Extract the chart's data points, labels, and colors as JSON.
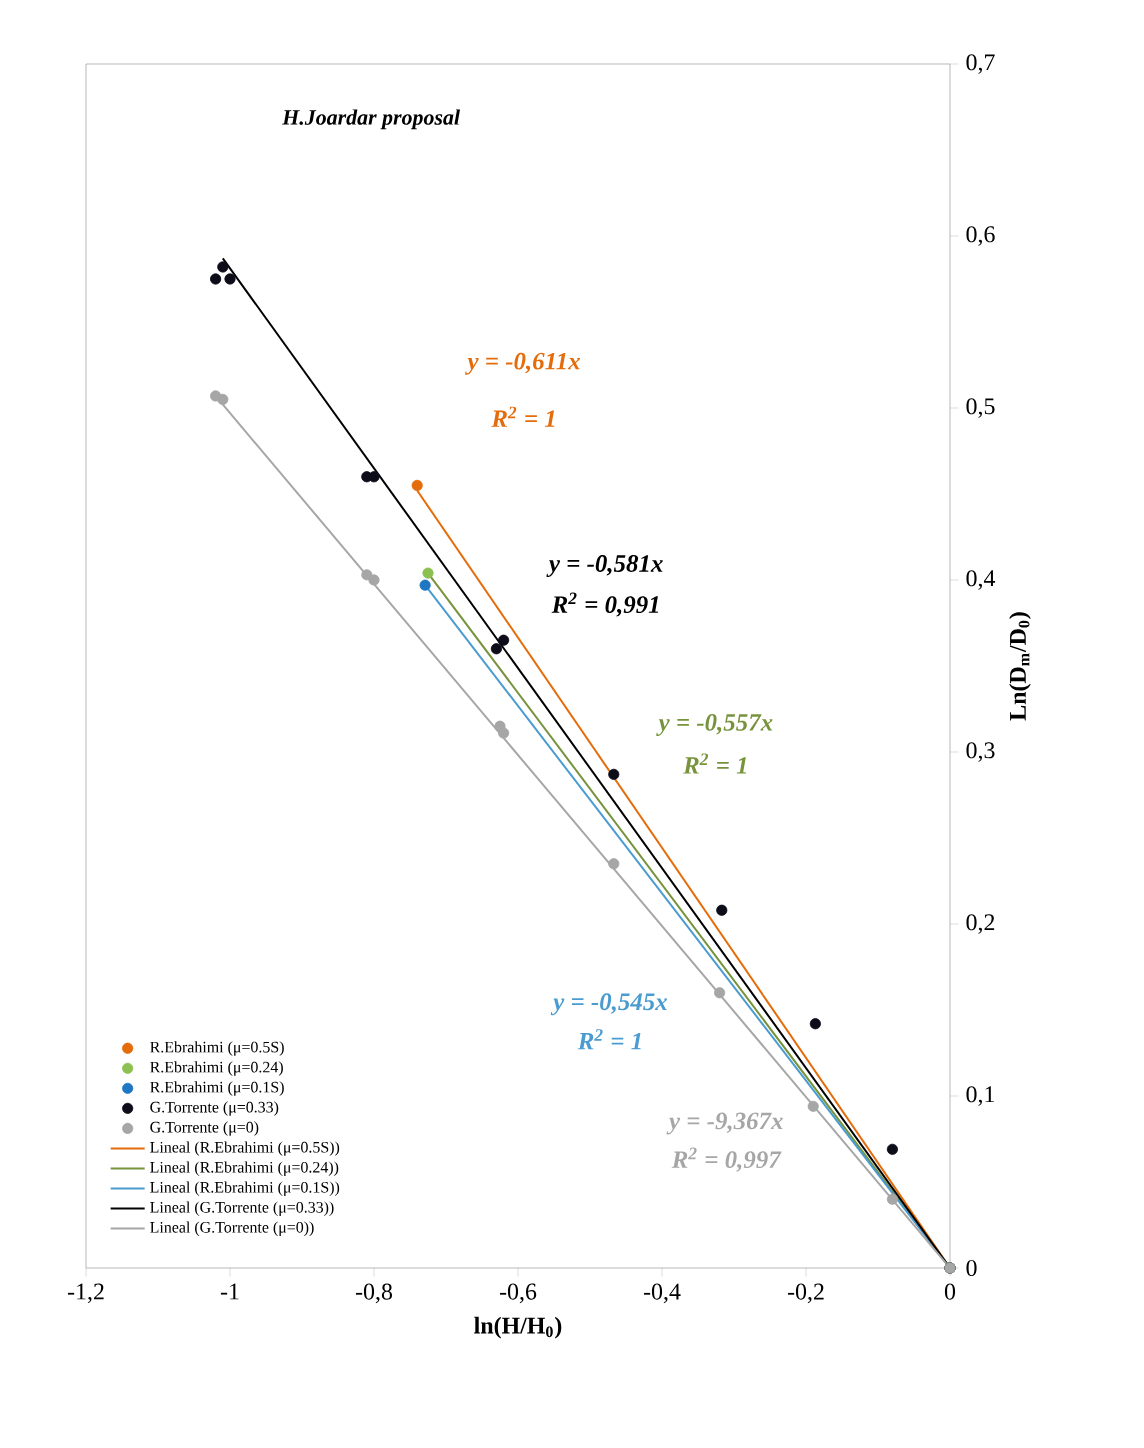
{
  "chart_data": {
    "type": "scatter",
    "title": "H.Joardar proposal",
    "xlabel": "ln(H/H$_{0}$)",
    "ylabel": "Ln(D$_{m}$/D$_{0}$)",
    "xlim": [
      -1.2,
      0
    ],
    "ylim": [
      0,
      0.7
    ],
    "xticks": [
      {
        "value": -1.2,
        "label": "-1,2"
      },
      {
        "value": -1,
        "label": "-1"
      },
      {
        "value": -0.8,
        "label": "-0,8"
      },
      {
        "value": -0.6,
        "label": "-0,6"
      },
      {
        "value": -0.4,
        "label": "-0,4"
      },
      {
        "value": -0.2,
        "label": "-0,2"
      },
      {
        "value": 0,
        "label": "0"
      }
    ],
    "yticks": [
      {
        "value": 0,
        "label": "0"
      },
      {
        "value": 0.1,
        "label": "0,1"
      },
      {
        "value": 0.2,
        "label": "0,2"
      },
      {
        "value": 0.3,
        "label": "0,3"
      },
      {
        "value": 0.4,
        "label": "0,4"
      },
      {
        "value": 0.5,
        "label": "0,5"
      },
      {
        "value": 0.6,
        "label": "0,6"
      },
      {
        "value": 0.7,
        "label": "0,7"
      }
    ],
    "legend": "bottom left",
    "series": [
      {
        "name": "R.Ebrahimi (μ=0.5S)",
        "marker": "circle",
        "color": "#e46c0a",
        "x": [
          -0.74,
          0
        ],
        "values": [
          0.455,
          0
        ]
      },
      {
        "name": "R.Ebrahimi (μ=0.24)",
        "marker": "circle",
        "color": "#8cc152",
        "x": [
          -0.725,
          0
        ],
        "values": [
          0.404,
          0
        ]
      },
      {
        "name": "R.Ebrahimi (μ=0.1S)",
        "marker": "circle",
        "color": "#1f77c4",
        "x": [
          -0.729,
          0
        ],
        "values": [
          0.397,
          0
        ]
      },
      {
        "name": "G.Torrente (μ=0.33)",
        "marker": "circle",
        "color": "#0d0d1a",
        "x": [
          -1.02,
          -1.01,
          -1.0,
          -0.81,
          -0.8,
          -0.63,
          -0.62,
          -0.467,
          -0.317,
          -0.187,
          -0.08,
          0
        ],
        "values": [
          0.575,
          0.582,
          0.575,
          0.46,
          0.46,
          0.36,
          0.365,
          0.287,
          0.208,
          0.142,
          0.069,
          0
        ]
      },
      {
        "name": "G.Torrente (μ=0)",
        "marker": "circle",
        "color": "#a6a6a6",
        "x": [
          -1.02,
          -1.01,
          -0.81,
          -0.8,
          -0.625,
          -0.62,
          -0.467,
          -0.32,
          -0.19,
          -0.08,
          0
        ],
        "values": [
          0.507,
          0.505,
          0.403,
          0.4,
          0.315,
          0.311,
          0.235,
          0.16,
          0.094,
          0.04,
          0
        ]
      },
      {
        "name": "Lineal (R.Ebrahimi (μ=0.5S))",
        "type": "line",
        "color": "#e46c0a",
        "x": [
          -0.74,
          0
        ],
        "values": [
          0.452,
          0
        ]
      },
      {
        "name": "Lineal (R.Ebrahimi (μ=0.24))",
        "type": "line",
        "color": "#77933c",
        "x": [
          -0.725,
          0
        ],
        "values": [
          0.404,
          0
        ]
      },
      {
        "name": "Lineal (R.Ebrahimi (μ=0.1S))",
        "type": "line",
        "color": "#4a9bd0",
        "x": [
          -0.729,
          0
        ],
        "values": [
          0.397,
          0
        ]
      },
      {
        "name": "Lineal (G.Torrente (μ=0.33))",
        "type": "line",
        "color": "#000000",
        "x": [
          -1.01,
          0
        ],
        "values": [
          0.587,
          0
        ]
      },
      {
        "name": "Lineal (G.Torrente (μ=0))",
        "type": "line",
        "color": "#a6a6a6",
        "x": [
          -1.02,
          0
        ],
        "values": [
          0.507,
          0
        ]
      }
    ],
    "annotations": [
      "y = -0,611x",
      "R$^{2}$ = 1",
      "y = -0,557x",
      "R$^{2}$ = 1",
      "y = -0,545x",
      "R$^{2}$ = 1",
      "y = -0,581x",
      "R$^{2}$ = 0,991",
      "y = -9,367x",
      "R$^{2}$ = 0,997"
    ]
  }
}
